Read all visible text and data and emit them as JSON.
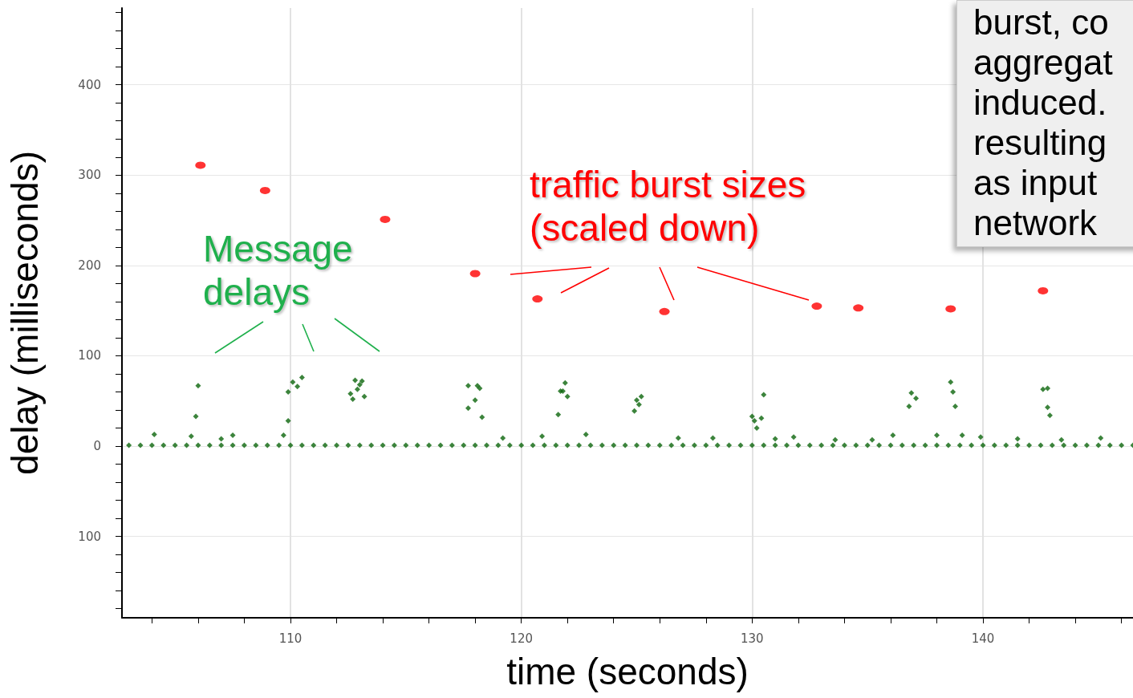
{
  "chart_data": {
    "type": "scatter",
    "xlabel": "time (seconds)",
    "ylabel": "delay (milliseconds)",
    "annotations": [
      "burst, co\naggregat\ninduced.\nresulting\nas input\nnetwork",
      "Message delays",
      "traffic burst sizes (scaled down)"
    ],
    "xlim": [
      102.7,
      146.5
    ],
    "ylim": [
      -190,
      485
    ],
    "xticks": [
      {
        "value": 104,
        "label": null
      },
      {
        "value": 106,
        "label": null
      },
      {
        "value": 108,
        "label": null
      },
      110,
      {
        "value": 112,
        "label": null
      },
      {
        "value": 114,
        "label": null
      },
      {
        "value": 116,
        "label": null
      },
      {
        "value": 118,
        "label": null
      },
      120,
      {
        "value": 122,
        "label": null
      },
      {
        "value": 124,
        "label": null
      },
      {
        "value": 126,
        "label": null
      },
      {
        "value": 128,
        "label": null
      },
      130,
      {
        "value": 132,
        "label": null
      },
      {
        "value": 134,
        "label": null
      },
      {
        "value": 136,
        "label": null
      },
      {
        "value": 138,
        "label": null
      },
      140,
      {
        "value": 142,
        "label": null
      },
      {
        "value": 144,
        "label": null
      },
      {
        "value": 146,
        "label": null
      }
    ],
    "yticks": [
      {
        "value": -180,
        "label": null
      },
      {
        "value": -160,
        "label": null
      },
      {
        "value": -140,
        "label": null
      },
      {
        "value": -120,
        "label": null
      },
      {
        "value": -100,
        "label": "100"
      },
      {
        "value": -80,
        "label": null
      },
      {
        "value": -60,
        "label": null
      },
      {
        "value": -40,
        "label": null
      },
      {
        "value": -20,
        "label": null
      },
      0,
      {
        "value": 20,
        "label": null
      },
      {
        "value": 40,
        "label": null
      },
      {
        "value": 60,
        "label": null
      },
      {
        "value": 80,
        "label": null
      },
      100,
      {
        "value": 120,
        "label": null
      },
      {
        "value": 140,
        "label": null
      },
      {
        "value": 160,
        "label": null
      },
      {
        "value": 180,
        "label": null
      },
      200,
      {
        "value": 220,
        "label": null
      },
      {
        "value": 240,
        "label": null
      },
      {
        "value": 260,
        "label": null
      },
      {
        "value": 280,
        "label": null
      },
      300,
      {
        "value": 320,
        "label": null
      },
      {
        "value": 340,
        "label": null
      },
      {
        "value": 360,
        "label": null
      },
      {
        "value": 380,
        "label": null
      },
      400,
      {
        "value": 420,
        "label": null
      },
      {
        "value": 440,
        "label": null
      },
      {
        "value": 460,
        "label": null
      },
      {
        "value": 480,
        "label": null
      }
    ],
    "grid": true,
    "series": [
      {
        "color": "#0b650b",
        "marker": "diamond",
        "x": [
          103,
          103.5,
          104,
          104.5,
          105,
          105.5,
          106,
          106.5,
          107,
          107.5,
          108,
          108.5,
          109,
          109.5,
          110,
          110.5,
          111,
          111.5,
          112,
          112.5,
          113,
          113.5,
          114,
          114.5,
          115,
          115.5,
          116,
          116.5,
          117,
          117.5,
          118,
          118.5,
          119,
          119.5,
          120,
          120.5,
          121,
          121.5,
          122,
          122.5,
          123,
          123.5,
          124,
          124.5,
          125,
          125.5,
          126,
          126.5,
          127,
          127.5,
          128,
          128.5,
          129,
          129.5,
          130,
          130.5,
          131,
          131.5,
          132,
          132.5,
          133,
          133.5,
          134,
          134.5,
          135,
          135.5,
          136,
          136.5,
          137,
          137.5,
          138,
          138.5,
          139,
          139.5,
          140,
          140.5,
          141,
          141.5,
          142,
          142.5,
          143,
          143.5,
          144,
          144.5,
          145,
          145.5,
          146,
          146.5,
          104.1,
          105.7,
          105.9,
          106.0,
          107.0,
          107.5,
          109.7,
          109.9,
          109.9,
          110.1,
          110.3,
          110.5,
          112.6,
          112.7,
          112.8,
          112.9,
          113.0,
          113.1,
          113.2,
          117.7,
          117.7,
          118.0,
          118.1,
          118.2,
          118.3,
          119.2,
          120.9,
          121.6,
          121.7,
          121.8,
          121.9,
          122.0,
          122.8,
          124.9,
          125.0,
          125.1,
          125.2,
          126.8,
          128.3,
          130.0,
          130.1,
          130.2,
          130.4,
          130.5,
          131.0,
          131.8,
          133.6,
          135.2,
          136.1,
          136.8,
          136.9,
          137.1,
          138.0,
          138.6,
          138.7,
          138.8,
          139.1,
          139.9,
          141.5,
          142.6,
          142.8,
          142.8,
          142.9,
          143.4,
          145.1
        ],
        "values": [
          1,
          1,
          1,
          1,
          1,
          1,
          1,
          1,
          1,
          1,
          1,
          1,
          1,
          1,
          1,
          1,
          1,
          1,
          1,
          1,
          1,
          1,
          1,
          1,
          1,
          1,
          1,
          1,
          1,
          1,
          1,
          1,
          1,
          1,
          1,
          1,
          1,
          1,
          1,
          1,
          1,
          1,
          1,
          1,
          1,
          1,
          1,
          1,
          1,
          1,
          1,
          1,
          1,
          1,
          1,
          1,
          1,
          1,
          1,
          1,
          1,
          1,
          1,
          1,
          1,
          1,
          1,
          1,
          1,
          1,
          1,
          1,
          1,
          1,
          1,
          1,
          1,
          1,
          1,
          1,
          1,
          1,
          1,
          1,
          1,
          1,
          1,
          1,
          13,
          11,
          33,
          67,
          8,
          12,
          12,
          28,
          60,
          71,
          66,
          76,
          58,
          52,
          73,
          63,
          68,
          72,
          55,
          42,
          67,
          51,
          67,
          64,
          32,
          9,
          11,
          35,
          61,
          61,
          70,
          55,
          13,
          39,
          51,
          46,
          55,
          9,
          9,
          33,
          28,
          20,
          31,
          57,
          8,
          10,
          7,
          7,
          12,
          44,
          59,
          53,
          12,
          71,
          60,
          44,
          12,
          10,
          8,
          63,
          64,
          43,
          34,
          7,
          9
        ]
      },
      {
        "color": "#ff0000",
        "marker": "circle",
        "x": [
          106.1,
          108.9,
          114.1,
          118.0,
          120.7,
          126.2,
          132.8,
          134.6,
          138.6,
          142.6
        ],
        "values": [
          311,
          283,
          251,
          191,
          163,
          149,
          155,
          153,
          152,
          172
        ]
      }
    ]
  }
}
